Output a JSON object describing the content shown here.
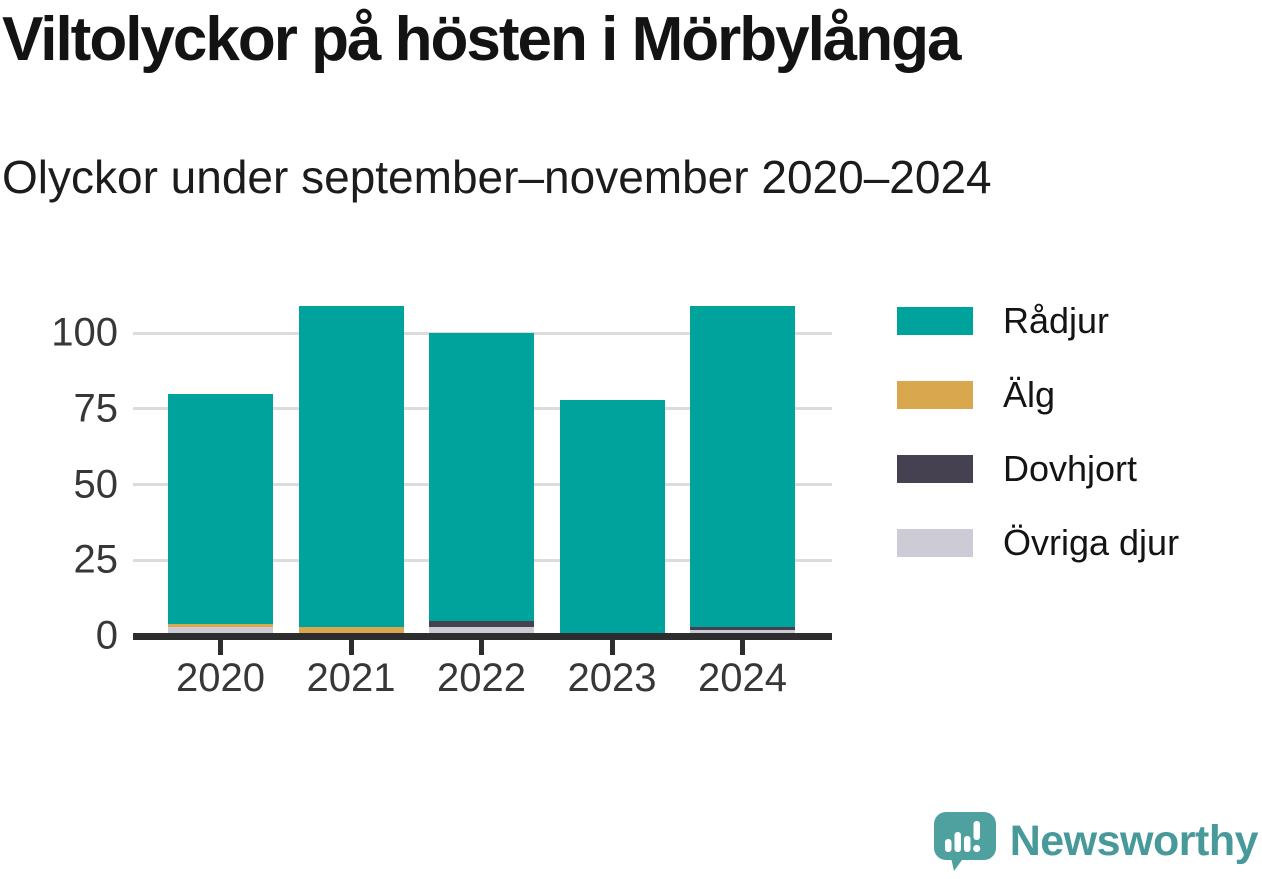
{
  "header": {
    "title": "Viltolyckor på hösten i Mörbylånga",
    "subtitle": "Olyckor under september–november 2020–2024"
  },
  "chart_data": {
    "type": "bar",
    "stacked": true,
    "title": "Viltolyckor på hösten i Mörbylånga",
    "subtitle": "Olyckor under september–november 2020–2024",
    "categories": [
      "2020",
      "2021",
      "2022",
      "2023",
      "2024"
    ],
    "series": [
      {
        "name": "Rådjur",
        "color": "#00a39b",
        "values": [
          76,
          106,
          95,
          78,
          106
        ]
      },
      {
        "name": "Älg",
        "color": "#d9a84e",
        "values": [
          1,
          3,
          0,
          0,
          0
        ]
      },
      {
        "name": "Dovhjort",
        "color": "#454150",
        "values": [
          0,
          0,
          2,
          0,
          1
        ]
      },
      {
        "name": "Övriga djur",
        "color": "#cdccd6",
        "values": [
          3,
          0,
          3,
          0,
          2
        ]
      }
    ],
    "totals": [
      80,
      109,
      100,
      78,
      109
    ],
    "stack_order_bottom_to_top": [
      "Övriga djur",
      "Dovhjort",
      "Älg",
      "Rådjur"
    ],
    "xlabel": "",
    "ylabel": "",
    "yticks": [
      0,
      25,
      50,
      75,
      100
    ],
    "ylim": [
      0,
      112
    ],
    "grid": "horizontal-only",
    "legend_position": "right"
  },
  "colors": {
    "axis": "#2d2d2d",
    "gridline": "#dcdcdc",
    "tick_text": "#373737",
    "title_text": "#131313",
    "brand_teal": "#47999a",
    "logo_bubble": "#4fa1a0"
  },
  "footer": {
    "brand": "Newsworthy",
    "logo_icon": "speech-bubble-bar-chart-exclamation"
  }
}
